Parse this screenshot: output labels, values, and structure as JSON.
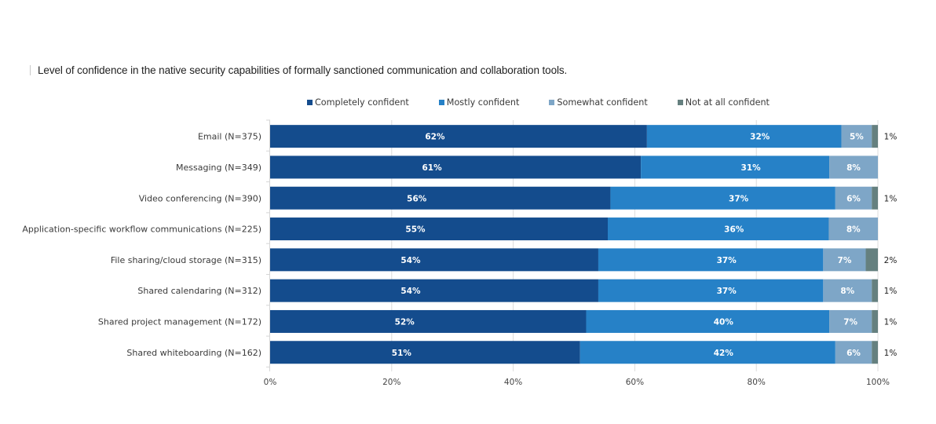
{
  "chart_data": {
    "type": "bar",
    "orientation": "horizontal",
    "stacked": true,
    "title": "Level of confidence in the native security capabilities of formally sanctioned communication and collaboration tools.",
    "xlabel": "",
    "ylabel": "",
    "xlim": [
      0,
      100
    ],
    "x_ticks": [
      "0%",
      "20%",
      "40%",
      "60%",
      "80%",
      "100%"
    ],
    "grid": true,
    "legend_position": "top-center",
    "categories": [
      "Email (N=375)",
      "Messaging (N=349)",
      "Video conferencing (N=390)",
      "Application-specific workflow communications (N=225)",
      "File sharing/cloud storage (N=315)",
      "Shared calendaring (N=312)",
      "Shared project management (N=172)",
      "Shared whiteboarding (N=162)"
    ],
    "series": [
      {
        "name": "Completely confident",
        "color": "#144c8d",
        "values": [
          62,
          61,
          56,
          55,
          54,
          54,
          52,
          51
        ]
      },
      {
        "name": "Mostly confident",
        "color": "#2681c7",
        "values": [
          32,
          31,
          37,
          36,
          37,
          37,
          40,
          42
        ]
      },
      {
        "name": "Somewhat confident",
        "color": "#7ea6c7",
        "values": [
          5,
          8,
          6,
          8,
          7,
          8,
          7,
          6
        ]
      },
      {
        "name": "Not at all confident",
        "color": "#65807f",
        "values": [
          1,
          0,
          1,
          0,
          2,
          1,
          1,
          1
        ]
      }
    ],
    "value_suffix": "%"
  }
}
